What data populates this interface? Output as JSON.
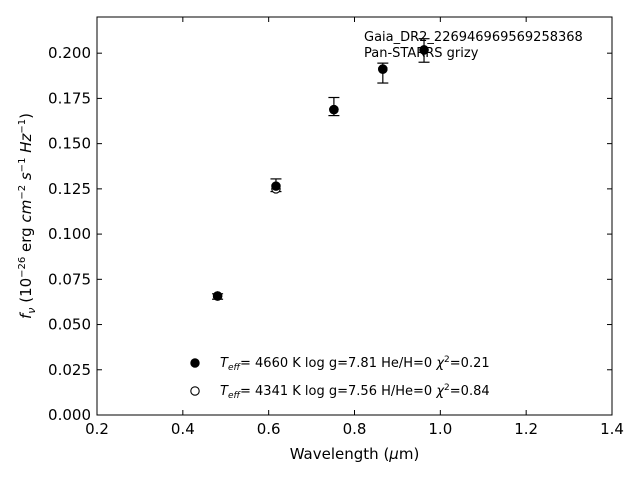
{
  "chart_data": {
    "type": "scatter",
    "xlabel": "Wavelength (μm)",
    "ylabel": "fν (10⁻²⁶ erg cm⁻² s⁻¹ Hz⁻¹)",
    "xlim": [
      0.2,
      1.4
    ],
    "ylim": [
      0.0,
      0.22
    ],
    "x_ticks": [
      "0.2",
      "0.4",
      "0.6",
      "0.8",
      "1.0",
      "1.2",
      "1.4"
    ],
    "y_ticks": [
      "0.000",
      "0.025",
      "0.050",
      "0.075",
      "0.100",
      "0.125",
      "0.150",
      "0.175",
      "0.200"
    ],
    "grid": false,
    "annotation": {
      "line1": "Gaia_DR2_226946969569258368",
      "line2": "Pan-STARRS grizy"
    },
    "observed": {
      "x": [
        0.481,
        0.617,
        0.752,
        0.866,
        0.962
      ],
      "y": [
        0.0655,
        0.127,
        0.1705,
        0.189,
        0.2015
      ],
      "err": [
        0.0015,
        0.0035,
        0.005,
        0.0055,
        0.0065
      ]
    },
    "series": [
      {
        "marker": "filled",
        "label": "T_eff= 4660 K log g=7.81 He/H=0 χ²=0.21",
        "x": [
          0.481,
          0.617,
          0.752,
          0.866,
          0.962
        ],
        "y": [
          0.0658,
          0.1265,
          0.1688,
          0.1912,
          0.2018
        ]
      },
      {
        "marker": "open",
        "label": "T_eff= 4341 K log g=7.56 H/He=0 χ²=0.84",
        "x": [
          0.481,
          0.617,
          0.752,
          0.866,
          0.962
        ],
        "y": [
          0.0658,
          0.125,
          0.1688,
          0.1912,
          0.2018
        ]
      }
    ],
    "legend": {
      "placement": "lower-center",
      "entries": [
        {
          "teff": "4660 K",
          "logg": "log g=7.81",
          "comp": "He/H=0",
          "chi": "=0.21"
        },
        {
          "teff": "4341 K",
          "logg": "log g=7.56",
          "comp": "H/He=0",
          "chi": "=0.84"
        }
      ]
    }
  }
}
